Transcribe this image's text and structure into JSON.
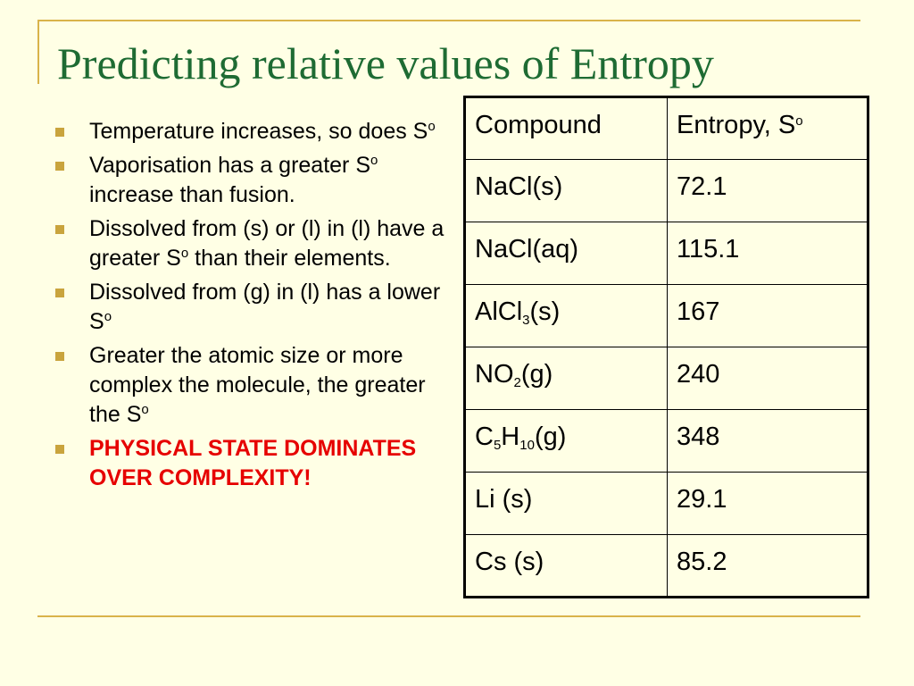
{
  "title": "Predicting relative values of Entropy",
  "colors": {
    "background": "#FFFFE5",
    "title": "#1E6B33",
    "frame": "#D9B34A",
    "bullet_marker": "#C9A43D",
    "emphasis": "#E60000"
  },
  "bullets": [
    {
      "parts": [
        "Temperature increases, so does S",
        "o"
      ]
    },
    {
      "parts": [
        "Vaporisation has a greater S",
        "o",
        " increase than fusion."
      ]
    },
    {
      "parts": [
        "Dissolved from (s) or (l) in (l) have a greater S",
        "o",
        " than their elements."
      ]
    },
    {
      "parts": [
        "Dissolved from (g) in (l) has a lower S",
        "o"
      ]
    },
    {
      "parts": [
        "Greater the atomic size or more complex the molecule, the greater the S",
        "o"
      ]
    },
    {
      "text": "PHYSICAL STATE DOMINATES OVER COMPLEXITY!"
    }
  ],
  "table": {
    "headers": {
      "compound": "Compound",
      "entropy": "Entropy, S",
      "entropy_sup": "o"
    },
    "rows": [
      {
        "compound": [
          "NaCl(s)"
        ],
        "entropy": "72.1"
      },
      {
        "compound": [
          "NaCl(aq)"
        ],
        "entropy": "115.1"
      },
      {
        "compound": [
          "AlCl",
          "3",
          "(s)"
        ],
        "entropy": "167"
      },
      {
        "compound": [
          "NO",
          "2",
          "(g)"
        ],
        "entropy": "240"
      },
      {
        "compound": [
          "C",
          "5",
          "H",
          "10",
          "(g)"
        ],
        "entropy": "348"
      },
      {
        "compound": [
          "Li (s)"
        ],
        "entropy": "29.1"
      },
      {
        "compound": [
          "Cs (s)"
        ],
        "entropy": "85.2"
      }
    ]
  }
}
